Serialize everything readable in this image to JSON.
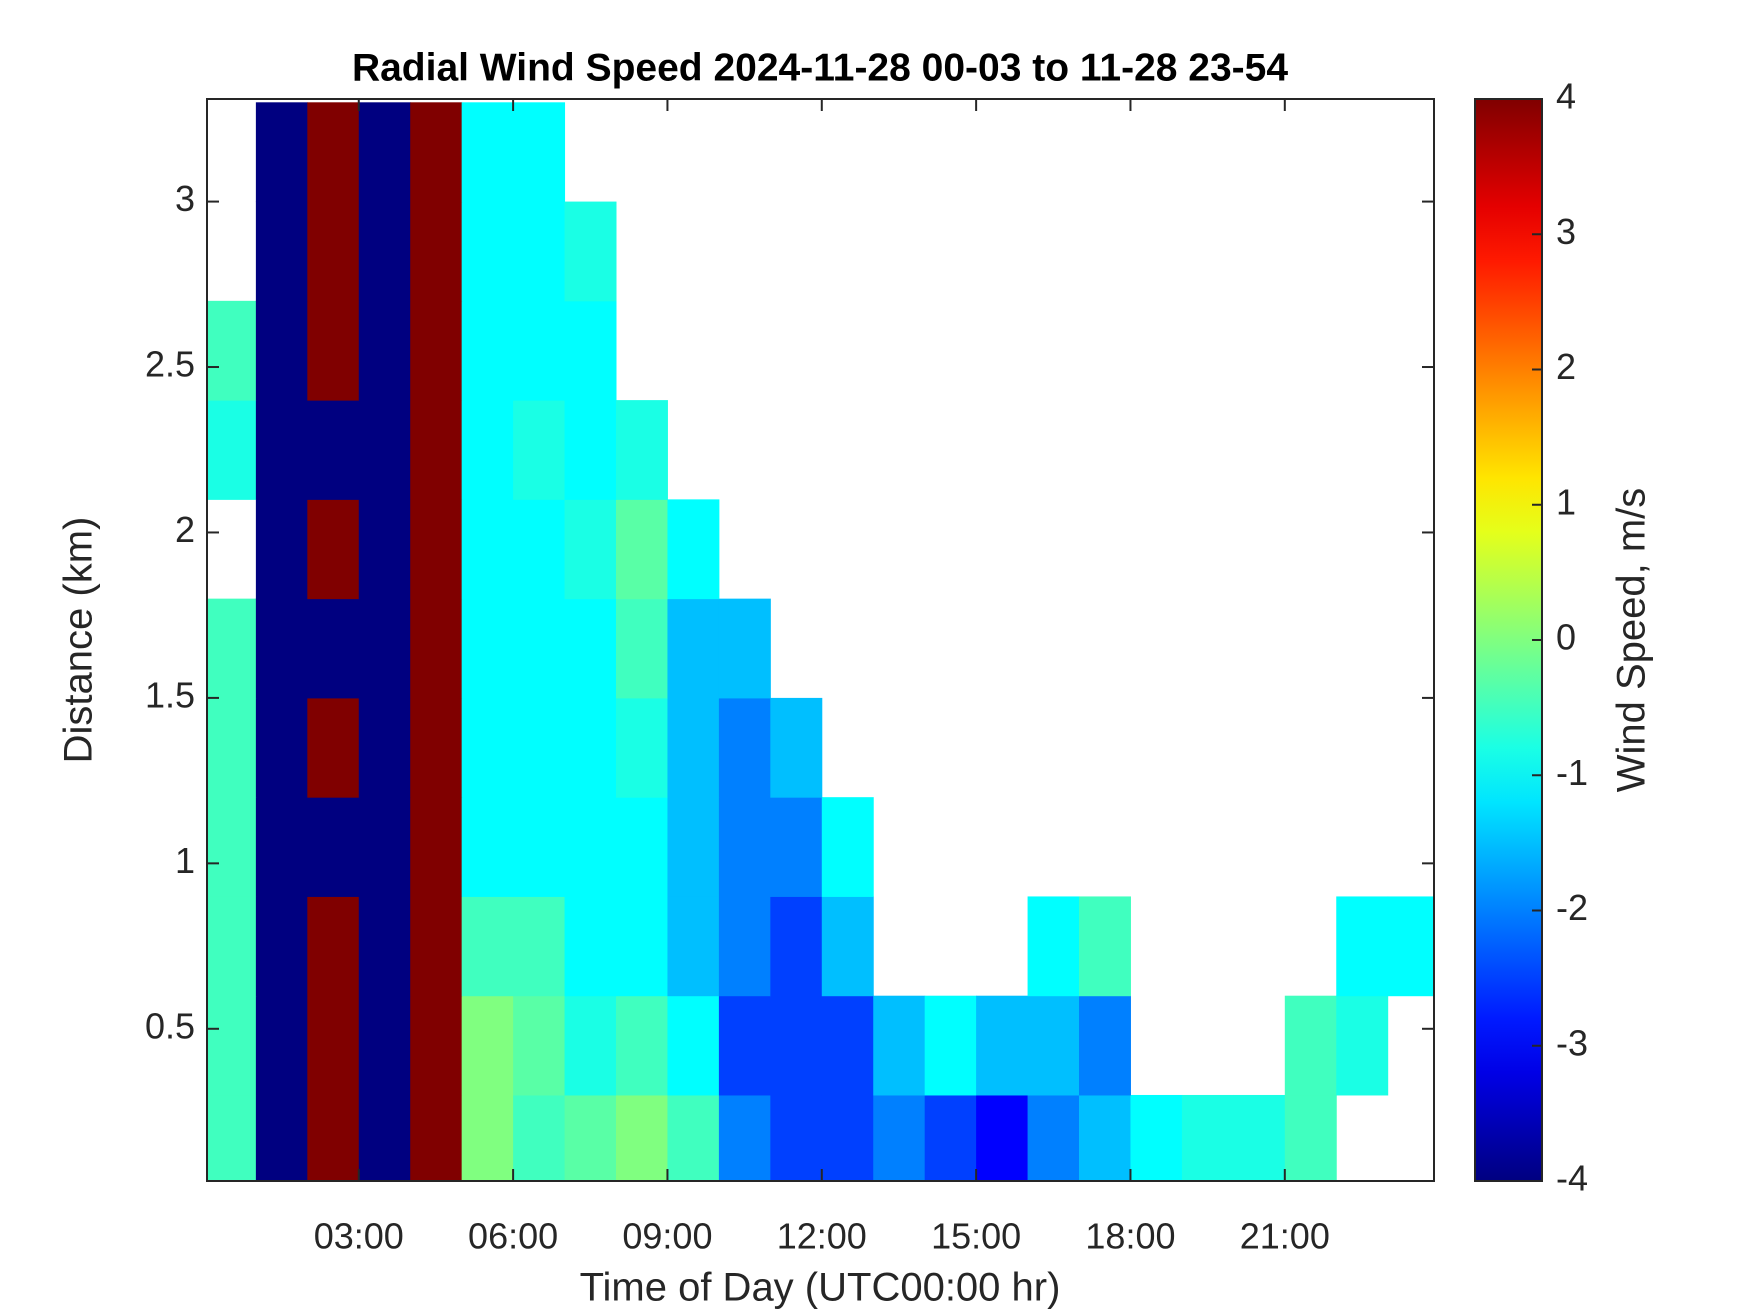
{
  "chart_data": {
    "type": "heatmap",
    "title": "Radial Wind Speed 2024-11-28 00-03 to 11-28 23-54",
    "xlabel": "Time of Day (UTC00:00 hr)",
    "ylabel": "Distance (km)",
    "colorbar_label": "Wind Speed, m/s",
    "colormap": "jet",
    "xbins": [
      0,
      1,
      2,
      3,
      4,
      5,
      6,
      7,
      8,
      9,
      10,
      11,
      12,
      13,
      14,
      15,
      16,
      17,
      18,
      19,
      20,
      21,
      22,
      23,
      24
    ],
    "ybins": [
      0,
      0.3,
      0.6,
      0.9,
      1.2,
      1.5,
      1.8,
      2.1,
      2.4,
      2.7,
      3.0,
      3.3
    ],
    "values": [
      [
        -0.5,
        -4,
        4,
        -4,
        4,
        0,
        -0.5,
        -0.3,
        0,
        -0.5,
        -2,
        -2.5,
        -2.5,
        -2,
        -2.5,
        -3,
        -2,
        -1.5,
        -1,
        -0.8,
        -0.8,
        -0.5,
        null,
        null
      ],
      [
        -0.5,
        -4,
        4,
        -4,
        4,
        0,
        -0.3,
        -0.8,
        -0.5,
        -1,
        -2.5,
        -2.5,
        -2.5,
        -1.5,
        -1,
        -1.5,
        -1.5,
        -2,
        null,
        null,
        null,
        -0.5,
        -0.8,
        null
      ],
      [
        -0.5,
        -4,
        4,
        -4,
        4,
        -0.5,
        -0.5,
        -1,
        -1,
        -1.5,
        -2,
        -2.5,
        -1.5,
        null,
        null,
        null,
        -1,
        -0.5,
        null,
        null,
        null,
        null,
        -1,
        -1
      ],
      [
        -0.5,
        -4,
        -4,
        -4,
        4,
        -1,
        -1,
        -1,
        -1,
        -1.5,
        -2,
        -2,
        -1,
        null,
        null,
        null,
        null,
        null,
        null,
        null,
        null,
        null,
        null,
        null
      ],
      [
        -0.5,
        -4,
        4,
        -4,
        4,
        -1,
        -1,
        -1,
        -0.8,
        -1.5,
        -2,
        -1.5,
        null,
        null,
        null,
        null,
        null,
        null,
        null,
        null,
        null,
        null,
        null,
        null
      ],
      [
        -0.5,
        -4,
        -4,
        -4,
        4,
        -1,
        -1,
        -1,
        -0.5,
        -1.5,
        -1.5,
        null,
        null,
        null,
        null,
        null,
        null,
        null,
        null,
        null,
        null,
        null,
        null,
        null
      ],
      [
        null,
        -4,
        4,
        -4,
        4,
        -1,
        -1,
        -0.8,
        -0.3,
        -1,
        null,
        null,
        null,
        null,
        null,
        null,
        null,
        null,
        null,
        null,
        null,
        null,
        null,
        null
      ],
      [
        -0.8,
        -4,
        -4,
        -4,
        4,
        -1,
        -0.8,
        -1,
        -0.8,
        null,
        null,
        null,
        null,
        null,
        null,
        null,
        null,
        null,
        null,
        null,
        null,
        null,
        null,
        null
      ],
      [
        -0.5,
        -4,
        4,
        -4,
        4,
        -1,
        -1,
        -1,
        null,
        null,
        null,
        null,
        null,
        null,
        null,
        null,
        null,
        null,
        null,
        null,
        null,
        null,
        null,
        null
      ],
      [
        null,
        -4,
        4,
        -4,
        4,
        -1,
        -1,
        -0.8,
        null,
        null,
        null,
        null,
        null,
        null,
        null,
        null,
        null,
        null,
        null,
        null,
        null,
        null,
        null,
        null
      ],
      [
        null,
        -4,
        4,
        -4,
        4,
        -1,
        -1,
        null,
        null,
        null,
        null,
        null,
        null,
        null,
        null,
        null,
        null,
        null,
        null,
        null,
        null,
        null,
        null,
        null
      ]
    ],
    "xlim": [
      0.05,
      23.9
    ],
    "xticks": [
      {
        "value": 3,
        "label": "03:00"
      },
      {
        "value": 6,
        "label": "06:00"
      },
      {
        "value": 9,
        "label": "09:00"
      },
      {
        "value": 12,
        "label": "12:00"
      },
      {
        "value": 15,
        "label": "15:00"
      },
      {
        "value": 18,
        "label": "18:00"
      },
      {
        "value": 21,
        "label": "21:00"
      }
    ],
    "ylim": [
      0.04,
      3.31
    ],
    "yticks": [
      0.5,
      1,
      1.5,
      2,
      2.5,
      3
    ],
    "clim": [
      -4,
      4
    ],
    "cticks": [
      -4,
      -3,
      -2,
      -1,
      0,
      1,
      2,
      3,
      4
    ]
  }
}
